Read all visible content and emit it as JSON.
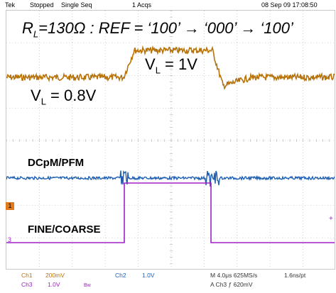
{
  "header": {
    "brand": "Tek",
    "status": "Stopped",
    "mode": "Single Seq",
    "acqs": "1 Acqs",
    "datetime": "08 Sep 09 17:08:50"
  },
  "annotations": {
    "title_r": "R",
    "title_r_sub": "L",
    "title_rest": "=130Ω : REF = ‘100’ → ‘000’ → ‘100’",
    "vl1_v": "V",
    "vl1_sub": "L",
    "vl1_rest": " = 1V",
    "vl2_v": "V",
    "vl2_sub": "L",
    "vl2_rest": " = 0.8V",
    "dcpm": "DCpM/PFM",
    "fine": "FINE/COARSE"
  },
  "markers": {
    "ch1": "1",
    "ch3": "3"
  },
  "footer": {
    "ch1_name": "Ch1",
    "ch1_scale": "200mV",
    "ch3_name": "Ch3",
    "ch3_scale": "1.0V",
    "bw": "Bw",
    "ch2_name": "Ch2",
    "ch2_scale": "1.0V",
    "timebase": "M 4.0μs 625MS/s",
    "trigger": "A  Ch3  ƒ  620mV",
    "pt": "1.6ns/pt"
  },
  "colors": {
    "ch1": "#b8730a",
    "ch2": "#1e5fb4",
    "ch3": "#a020c8",
    "grid": "#b0b0b0",
    "marker_bg": "#e07a1a"
  },
  "chart_data": {
    "type": "line",
    "grid": true,
    "divisions": {
      "x": 10,
      "y": 8
    },
    "series": [
      {
        "name": "Ch1",
        "segments": [
          [
            0,
            0.8
          ],
          [
            3.6,
            0.8
          ],
          [
            3.9,
            1.0
          ],
          [
            6.5,
            1.0
          ],
          [
            6.9,
            0.8
          ],
          [
            10,
            0.8
          ]
        ]
      },
      {
        "name": "Ch2",
        "segments": [
          [
            0,
            1
          ],
          [
            10,
            1
          ]
        ]
      },
      {
        "name": "Ch3",
        "segments": [
          [
            0,
            0
          ],
          [
            3.5,
            0
          ],
          [
            3.5,
            1
          ],
          [
            6.0,
            1
          ],
          [
            6.0,
            0
          ],
          [
            10,
            0
          ]
        ]
      }
    ]
  }
}
